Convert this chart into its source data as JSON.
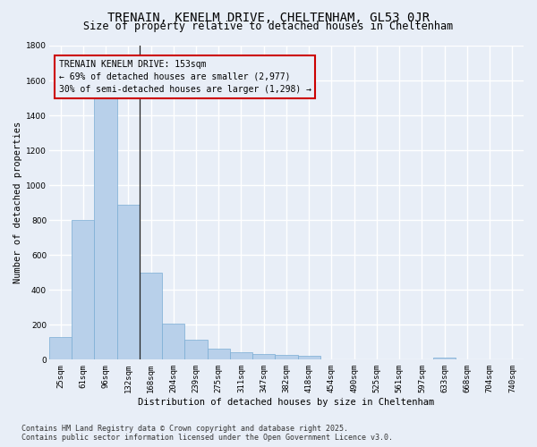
{
  "title": "TRENAIN, KENELM DRIVE, CHELTENHAM, GL53 0JR",
  "subtitle": "Size of property relative to detached houses in Cheltenham",
  "xlabel": "Distribution of detached houses by size in Cheltenham",
  "ylabel": "Number of detached properties",
  "categories": [
    "25sqm",
    "61sqm",
    "96sqm",
    "132sqm",
    "168sqm",
    "204sqm",
    "239sqm",
    "275sqm",
    "311sqm",
    "347sqm",
    "382sqm",
    "418sqm",
    "454sqm",
    "490sqm",
    "525sqm",
    "561sqm",
    "597sqm",
    "633sqm",
    "668sqm",
    "704sqm",
    "740sqm"
  ],
  "values": [
    130,
    800,
    1500,
    890,
    500,
    205,
    115,
    65,
    45,
    32,
    28,
    22,
    0,
    0,
    0,
    0,
    0,
    10,
    0,
    0,
    0
  ],
  "bar_color": "#b8d0ea",
  "bar_edge_color": "#7aadd4",
  "bg_color": "#e8eef7",
  "grid_color": "#ffffff",
  "annotation_box_edge_color": "#cc0000",
  "annotation_text": "TRENAIN KENELM DRIVE: 153sqm\n← 69% of detached houses are smaller (2,977)\n30% of semi-detached houses are larger (1,298) →",
  "vline_x_index": 3.5,
  "ylim": [
    0,
    1800
  ],
  "yticks": [
    0,
    200,
    400,
    600,
    800,
    1000,
    1200,
    1400,
    1600,
    1800
  ],
  "title_fontsize": 10,
  "subtitle_fontsize": 8.5,
  "axis_label_fontsize": 7.5,
  "tick_fontsize": 6.5,
  "annotation_fontsize": 7,
  "footer_text": "Contains HM Land Registry data © Crown copyright and database right 2025.\nContains public sector information licensed under the Open Government Licence v3.0.",
  "footer_fontsize": 6
}
